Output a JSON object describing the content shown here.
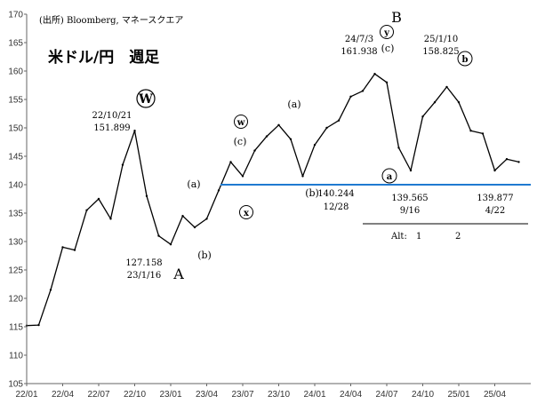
{
  "chart_data": {
    "type": "line",
    "title": "米ドル/円　週足",
    "source": "(出所)  Bloomberg, マネースクエア",
    "ylim": [
      105,
      170
    ],
    "yticks": [
      105,
      110,
      115,
      120,
      125,
      130,
      135,
      140,
      145,
      150,
      155,
      160,
      165,
      170
    ],
    "xlim": [
      "2022-01",
      "2025-07"
    ],
    "xticks": [
      "22/01",
      "22/04",
      "22/07",
      "22/10",
      "23/01",
      "23/04",
      "23/07",
      "23/10",
      "24/01",
      "24/04",
      "24/07",
      "24/10",
      "25/01",
      "25/04"
    ],
    "grid": false,
    "series": [
      {
        "x": [
          "2022-01",
          "2022-02",
          "2022-03",
          "2022-04",
          "2022-05",
          "2022-06",
          "2022-07",
          "2022-08",
          "2022-09",
          "2022-10",
          "2022-11",
          "2022-12",
          "2023-01",
          "2023-02",
          "2023-03",
          "2023-04",
          "2023-05",
          "2023-06",
          "2023-07",
          "2023-08",
          "2023-09",
          "2023-10",
          "2023-11",
          "2023-12",
          "2024-01",
          "2024-02",
          "2024-03",
          "2024-04",
          "2024-05",
          "2024-06",
          "2024-07",
          "2024-08",
          "2024-09",
          "2024-10",
          "2024-11",
          "2024-12",
          "2025-01",
          "2025-02",
          "2025-03",
          "2025-04",
          "2025-05",
          "2025-06"
        ],
        "values": [
          115.2,
          115.3,
          121.5,
          129.0,
          128.5,
          135.5,
          137.5,
          134.0,
          143.5,
          149.5,
          138.0,
          131.0,
          129.5,
          134.5,
          132.5,
          134.0,
          139.0,
          144.0,
          141.5,
          146.0,
          148.5,
          150.5,
          148.0,
          141.5,
          147.0,
          150.0,
          151.3,
          155.5,
          156.5,
          159.5,
          158.0,
          146.5,
          142.5,
          152.0,
          154.5,
          157.2,
          154.5,
          149.5,
          149.0,
          142.5,
          144.5,
          144.0
        ]
      }
    ],
    "reference_line": {
      "value": 140,
      "color": "#1f7ad1"
    },
    "annotations": {
      "W": "W",
      "w_date": "22/10/21",
      "w_value": "151.899",
      "a_date": "127.158",
      "a_val": "23/1/16",
      "A": "A",
      "a1": "(a)",
      "b1": "(b)",
      "w_small": "w",
      "c1": "(c)",
      "x_small": "x",
      "a2": "(a)",
      "b2": "(b)",
      "b2_value": "140.244",
      "b2_date": "12/28",
      "peak_date": "24/7/3",
      "peak_value": "161.938",
      "B": "B",
      "y_small": "y",
      "c2": "(c)",
      "peak2_date": "25/1/10",
      "peak2_value": "158.825",
      "b_small": "b",
      "a_small": "a",
      "low1_value": "139.565",
      "low1_date": "9/16",
      "low2_value": "139.877",
      "low2_date": "4/22",
      "alt_label": "Alt:",
      "alt_1": "1",
      "alt_2": "2"
    },
    "colors": {
      "line": "#000000",
      "support": "#1f7ad1",
      "red": "#e01818",
      "blue": "#1a6fc9"
    }
  }
}
